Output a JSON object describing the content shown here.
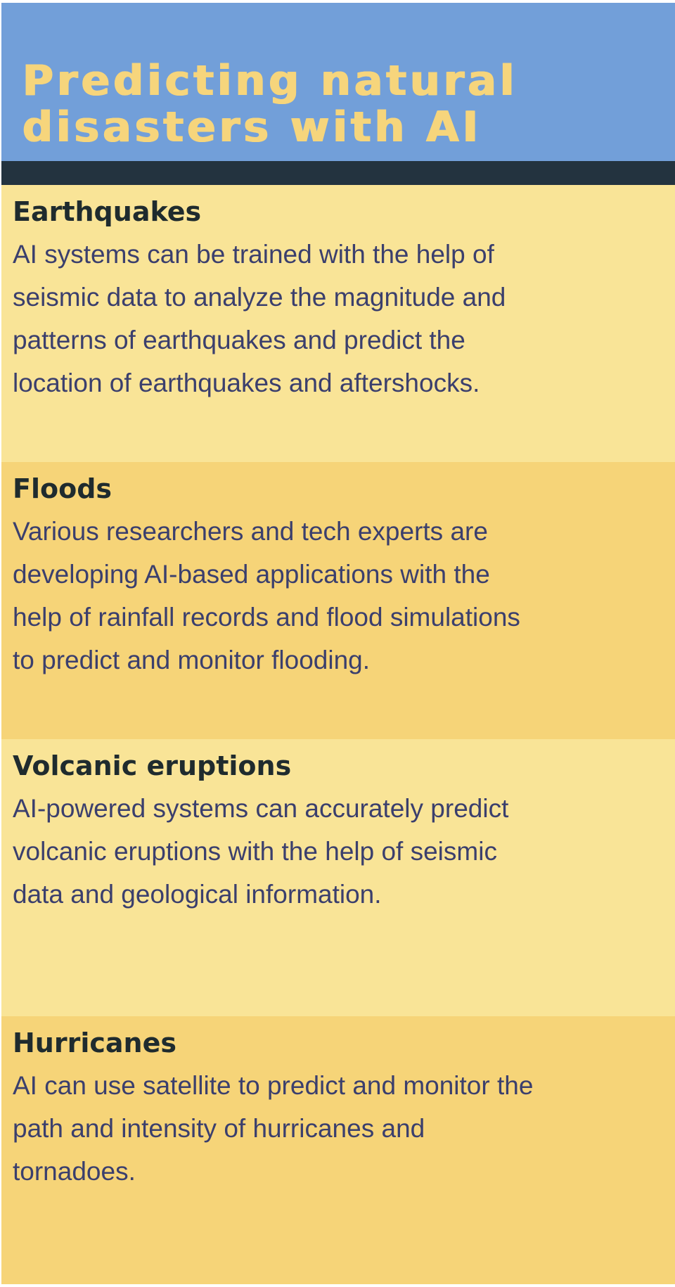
{
  "title": {
    "lines": [
      "Predicting natural",
      "disasters with AI"
    ]
  },
  "sections": [
    {
      "heading": "Earthquakes",
      "lines": [
        "AI systems can be trained with the help of",
        "seismic data to analyze the magnitude and",
        "patterns of earthquakes and predict the",
        "location of earthquakes and aftershocks."
      ]
    },
    {
      "heading": "Floods",
      "lines": [
        "Various researchers and tech experts are",
        "developing AI-based applications with the",
        "help of rainfall records and flood simulations",
        "to predict and monitor flooding."
      ]
    },
    {
      "heading": "Volcanic eruptions",
      "lines": [
        "AI-powered systems can accurately predict",
        "volcanic eruptions with the help of seismic",
        "data and geological information."
      ]
    },
    {
      "heading": "Hurricanes",
      "lines": [
        "AI can use satellite to predict and monitor the",
        "path and intensity of hurricanes and",
        "tornadoes."
      ]
    }
  ],
  "colors": {
    "header_background": "#729fd9",
    "title_text": "#f6d57c",
    "divider": "#23333f",
    "section_light": "#f9e497",
    "section_dark": "#f6d478",
    "heading_text": "#1f2b2e",
    "body_text": "#3b3f6d"
  }
}
